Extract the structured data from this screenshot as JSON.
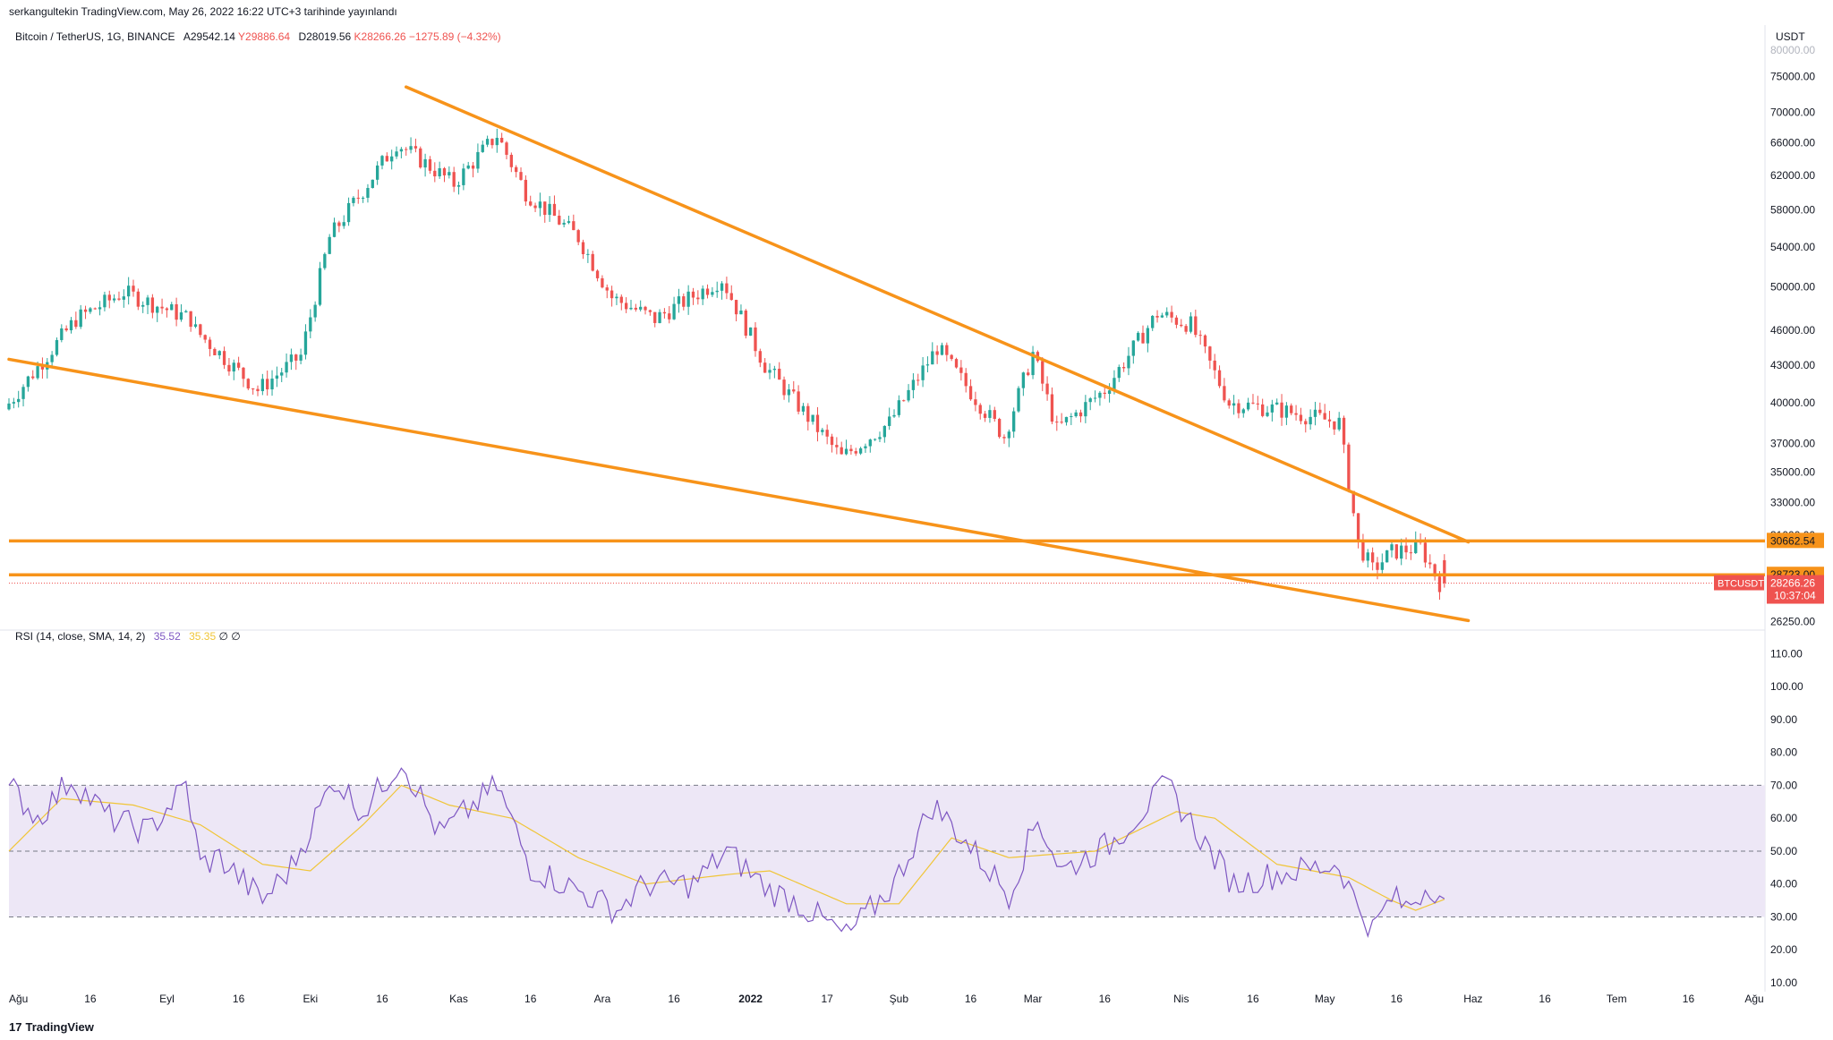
{
  "header": {
    "published": "serkangultekin TradingView.com, May 26, 2022 16:22 UTC+3 tarihinde yayınlandı"
  },
  "legend": {
    "symbol": "Bitcoin / TetherUS, 1G, BINANCE",
    "open": "A29542.14",
    "high": "Y29886.64",
    "low": "D28019.56",
    "close": "K28266.26",
    "change": "−1275.89 (−4.32%)"
  },
  "rsi_legend": {
    "label": "RSI (14, close, SMA, 14, 2)",
    "rsi_value": "35.52",
    "sma_value": "35.35",
    "extra": "∅ ∅"
  },
  "price_axis": {
    "currency": "USDT",
    "top_partial": "80000.00",
    "ticks": [
      "75000.00",
      "70000.00",
      "66000.00",
      "62000.00",
      "58000.00",
      "54000.00",
      "50000.00",
      "46000.00",
      "43000.00",
      "40000.00",
      "37000.00",
      "35000.00",
      "33000.00",
      "31000.00",
      "26250.00"
    ],
    "label_upper": "30662.54",
    "label_lower": "28723.00",
    "symbol_tag": "BTCUSDT",
    "current_price": "28266.26",
    "countdown": "10:37:04"
  },
  "rsi_axis": {
    "ticks": [
      "110.00",
      "100.00",
      "90.00",
      "80.00",
      "70.00",
      "60.00",
      "50.00",
      "40.00",
      "30.00",
      "20.00",
      "10.00"
    ]
  },
  "time_axis": {
    "labels": [
      "Ağu",
      "16",
      "Eyl",
      "16",
      "Eki",
      "16",
      "Kas",
      "16",
      "Ara",
      "16",
      "2022",
      "17",
      "Şub",
      "16",
      "Mar",
      "16",
      "Nis",
      "16",
      "May",
      "16",
      "Haz",
      "16",
      "Tem",
      "16",
      "Ağu"
    ]
  },
  "footer": {
    "brand": "TradingView",
    "logo_glyph": "17"
  },
  "colors": {
    "up": "#26a69a",
    "down": "#ef5350",
    "trendline": "#f7931a",
    "rsi_line": "#7e57c2",
    "rsi_sma": "#f0c537",
    "rsi_band": "#ede7f6",
    "price_tag": "#ef5350"
  },
  "chart_data": [
    {
      "type": "candlestick",
      "title": "Bitcoin / TetherUS, 1G, BINANCE",
      "y_scale": "log",
      "ylim": [
        26000,
        80000
      ],
      "x_range": [
        "2021-07-30",
        "2022-08-01"
      ],
      "anchors": [
        {
          "date": "2021-07-30",
          "price": 39500
        },
        {
          "date": "2021-08-14",
          "price": 47000
        },
        {
          "date": "2021-08-24",
          "price": 49500
        },
        {
          "date": "2021-09-07",
          "price": 47000
        },
        {
          "date": "2021-09-08",
          "price": 46000
        },
        {
          "date": "2021-09-21",
          "price": 41000
        },
        {
          "date": "2021-09-30",
          "price": 43800
        },
        {
          "date": "2021-10-06",
          "price": 55000
        },
        {
          "date": "2021-10-20",
          "price": 66000
        },
        {
          "date": "2021-11-01",
          "price": 61000
        },
        {
          "date": "2021-11-10",
          "price": 67000
        },
        {
          "date": "2021-11-16",
          "price": 60000
        },
        {
          "date": "2021-11-27",
          "price": 55000
        },
        {
          "date": "2021-12-04",
          "price": 49000
        },
        {
          "date": "2021-12-13",
          "price": 47000
        },
        {
          "date": "2021-12-27",
          "price": 50800
        },
        {
          "date": "2022-01-05",
          "price": 43000
        },
        {
          "date": "2022-01-21",
          "price": 36000
        },
        {
          "date": "2022-01-31",
          "price": 38500
        },
        {
          "date": "2022-02-10",
          "price": 44500
        },
        {
          "date": "2022-02-24",
          "price": 37500
        },
        {
          "date": "2022-03-02",
          "price": 44000
        },
        {
          "date": "2022-03-07",
          "price": 38000
        },
        {
          "date": "2022-03-17",
          "price": 41000
        },
        {
          "date": "2022-03-28",
          "price": 47500
        },
        {
          "date": "2022-04-04",
          "price": 46500
        },
        {
          "date": "2022-04-12",
          "price": 40000
        },
        {
          "date": "2022-04-22",
          "price": 39500
        },
        {
          "date": "2022-05-05",
          "price": 38500
        },
        {
          "date": "2022-05-09",
          "price": 30500
        },
        {
          "date": "2022-05-12",
          "price": 29000
        },
        {
          "date": "2022-05-16",
          "price": 30000
        },
        {
          "date": "2022-05-22",
          "price": 30300
        },
        {
          "date": "2022-05-26",
          "price": 28266
        }
      ],
      "last_candle": {
        "date": "2022-05-26",
        "open": 29542.14,
        "high": 29886.64,
        "low": 28019.56,
        "close": 28266.26
      },
      "horizontal_lines": [
        {
          "price": 30662.54
        },
        {
          "price": 28723.0
        }
      ],
      "trendlines": [
        {
          "from": {
            "date": "2021-10-21",
            "price": 73500
          },
          "to": {
            "date": "2022-05-31",
            "price": 30600
          }
        },
        {
          "from": {
            "date": "2021-07-30",
            "price": 43500
          },
          "to": {
            "date": "2022-05-31",
            "price": 26300
          }
        }
      ]
    },
    {
      "type": "line",
      "title": "RSI (14, close, SMA, 14, 2)",
      "ylim": [
        10,
        115
      ],
      "band": [
        30,
        70
      ],
      "midline": 50,
      "series": [
        {
          "name": "RSI",
          "anchors": [
            {
              "date": "2021-07-30",
              "value": 70
            },
            {
              "date": "2021-08-05",
              "value": 60
            },
            {
              "date": "2021-08-12",
              "value": 72
            },
            {
              "date": "2021-08-20",
              "value": 60
            },
            {
              "date": "2021-08-28",
              "value": 56
            },
            {
              "date": "2021-09-05",
              "value": 70
            },
            {
              "date": "2021-09-08",
              "value": 46
            },
            {
              "date": "2021-09-12",
              "value": 48
            },
            {
              "date": "2021-09-21",
              "value": 35
            },
            {
              "date": "2021-09-27",
              "value": 45
            },
            {
              "date": "2021-10-06",
              "value": 72
            },
            {
              "date": "2021-10-12",
              "value": 62
            },
            {
              "date": "2021-10-20",
              "value": 78
            },
            {
              "date": "2021-10-28",
              "value": 55
            },
            {
              "date": "2021-11-09",
              "value": 70
            },
            {
              "date": "2021-11-16",
              "value": 45
            },
            {
              "date": "2021-11-26",
              "value": 38
            },
            {
              "date": "2021-12-04",
              "value": 32
            },
            {
              "date": "2021-12-10",
              "value": 40
            },
            {
              "date": "2021-12-20",
              "value": 40
            },
            {
              "date": "2021-12-27",
              "value": 50
            },
            {
              "date": "2022-01-05",
              "value": 38
            },
            {
              "date": "2022-01-10",
              "value": 35
            },
            {
              "date": "2022-01-21",
              "value": 24
            },
            {
              "date": "2022-01-31",
              "value": 40
            },
            {
              "date": "2022-02-08",
              "value": 64
            },
            {
              "date": "2022-02-12",
              "value": 58
            },
            {
              "date": "2022-02-24",
              "value": 37
            },
            {
              "date": "2022-03-02",
              "value": 60
            },
            {
              "date": "2022-03-07",
              "value": 44
            },
            {
              "date": "2022-03-17",
              "value": 52
            },
            {
              "date": "2022-03-29",
              "value": 70
            },
            {
              "date": "2022-04-06",
              "value": 52
            },
            {
              "date": "2022-04-12",
              "value": 40
            },
            {
              "date": "2022-04-21",
              "value": 43
            },
            {
              "date": "2022-05-04",
              "value": 46
            },
            {
              "date": "2022-05-07",
              "value": 36
            },
            {
              "date": "2022-05-11",
              "value": 26
            },
            {
              "date": "2022-05-15",
              "value": 36
            },
            {
              "date": "2022-05-18",
              "value": 33
            },
            {
              "date": "2022-05-23",
              "value": 40
            },
            {
              "date": "2022-05-26",
              "value": 35.52
            }
          ]
        },
        {
          "name": "SMA",
          "anchors": [
            {
              "date": "2021-07-30",
              "value": 50
            },
            {
              "date": "2021-08-10",
              "value": 66
            },
            {
              "date": "2021-08-25",
              "value": 64
            },
            {
              "date": "2021-09-08",
              "value": 58
            },
            {
              "date": "2021-09-21",
              "value": 46
            },
            {
              "date": "2021-10-01",
              "value": 44
            },
            {
              "date": "2021-10-12",
              "value": 58
            },
            {
              "date": "2021-10-20",
              "value": 70
            },
            {
              "date": "2021-10-30",
              "value": 64
            },
            {
              "date": "2021-11-12",
              "value": 60
            },
            {
              "date": "2021-11-26",
              "value": 48
            },
            {
              "date": "2021-12-10",
              "value": 40
            },
            {
              "date": "2021-12-28",
              "value": 43
            },
            {
              "date": "2022-01-05",
              "value": 44
            },
            {
              "date": "2022-01-21",
              "value": 34
            },
            {
              "date": "2022-02-01",
              "value": 34
            },
            {
              "date": "2022-02-12",
              "value": 54
            },
            {
              "date": "2022-02-24",
              "value": 48
            },
            {
              "date": "2022-03-14",
              "value": 50
            },
            {
              "date": "2022-03-31",
              "value": 62
            },
            {
              "date": "2022-04-08",
              "value": 60
            },
            {
              "date": "2022-04-21",
              "value": 46
            },
            {
              "date": "2022-05-06",
              "value": 42
            },
            {
              "date": "2022-05-15",
              "value": 35
            },
            {
              "date": "2022-05-20",
              "value": 32
            },
            {
              "date": "2022-05-26",
              "value": 35.35
            }
          ]
        }
      ]
    }
  ]
}
